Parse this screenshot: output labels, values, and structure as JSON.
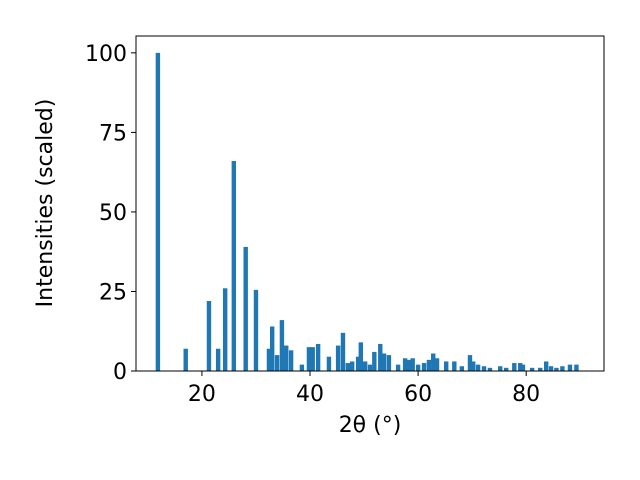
{
  "chart_data": {
    "type": "bar",
    "x_label": "2θ (°)",
    "y_label": "Intensities (scaled)",
    "x": [
      11.85,
      17.0,
      21.3,
      23.0,
      24.3,
      25.9,
      28.1,
      30.0,
      32.4,
      33.0,
      33.9,
      34.8,
      35.6,
      36.5,
      38.5,
      39.8,
      40.5,
      41.5,
      43.5,
      45.2,
      46.1,
      47.0,
      47.8,
      48.9,
      49.4,
      50.2,
      51.1,
      51.9,
      53.0,
      53.7,
      54.6,
      56.3,
      57.6,
      58.3,
      59.0,
      60.0,
      61.1,
      62.0,
      62.8,
      63.5,
      65.2,
      66.7,
      68.1,
      69.6,
      70.2,
      71.1,
      72.2,
      73.3,
      75.2,
      76.3,
      77.8,
      78.9,
      79.4,
      81.1,
      82.6,
      83.7,
      84.6,
      85.6,
      86.7,
      88.1,
      89.3
    ],
    "values": [
      100,
      7,
      22,
      7,
      26,
      66,
      39,
      25.5,
      7,
      14,
      5,
      16,
      8,
      6.5,
      2,
      7.5,
      7.5,
      8.5,
      4.5,
      8,
      12,
      2.5,
      3,
      4.5,
      9,
      3,
      2,
      6,
      8.5,
      5.5,
      5,
      2,
      4,
      3.5,
      4,
      2,
      2.5,
      3.5,
      5.5,
      4,
      3,
      3,
      1.5,
      5,
      3,
      2,
      1.5,
      1,
      1.5,
      1,
      2.5,
      2.5,
      2,
      1,
      1,
      3,
      1.5,
      1,
      1.5,
      2,
      2
    ],
    "color": "#1f77b4",
    "xlim": [
      7.8,
      94.4
    ],
    "ylim": [
      0,
      105.3
    ],
    "xticks": [
      20,
      40,
      60,
      80
    ],
    "yticks": [
      0,
      25,
      50,
      75,
      100
    ]
  }
}
